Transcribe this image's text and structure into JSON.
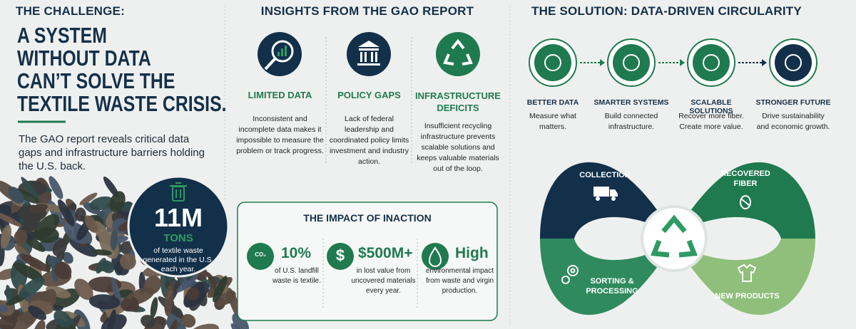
{
  "challenge": {
    "label": "THE CHALLENGE:",
    "headline": [
      "A SYSTEM",
      "WITHOUT DATA",
      "CAN’T SOLVE THE",
      "TEXTILE WASTE CRISIS."
    ],
    "body": "The GAO report reveals critical data gaps and infrastructure barriers holding the U.S. back.",
    "stat": {
      "value": "11M",
      "unit": "TONS",
      "text": "of textile waste generated in the U.S. each year."
    }
  },
  "insights": {
    "title": "INSIGHTS FROM THE GAO REPORT",
    "items": [
      {
        "title": "LIMITED DATA",
        "text": "Inconsistent and incomplete data makes it impossible to measure the problem or track progress."
      },
      {
        "title": "POLICY GAPS",
        "text": "Lack of federal leadership and coordinated policy limits investment and industry action."
      },
      {
        "title": "INFRASTRUCTURE DEFICITS",
        "text": "Insufficient recycling infrastructure prevents scalable solutions and keeps valuable materials out of the loop."
      }
    ]
  },
  "impact": {
    "title": "THE IMPACT OF INACTION",
    "items": [
      {
        "icon": "CO₂",
        "value": "10%",
        "text": "of U.S. landfill waste is textile."
      },
      {
        "icon": "$",
        "value": "$500M+",
        "text": "in lost value from uncovered materials every year."
      },
      {
        "value": "High",
        "text": "environmental impact from waste and virgin production."
      }
    ]
  },
  "solution": {
    "title": "THE SOLUTION: DATA-DRIVEN CIRCULARITY",
    "steps": [
      {
        "title": "BETTER DATA",
        "text": "Measure what matters."
      },
      {
        "title": "SMARTER SYSTEMS",
        "text": "Build connected infrastructure."
      },
      {
        "title": "SCALABLE SOLUTIONS",
        "text": "Recover more fiber. Create more value."
      },
      {
        "title": "STRONGER FUTURE",
        "text": "Drive sustainability and economic growth."
      }
    ],
    "cycle": [
      "COLLECTION",
      "RECOVERED FIBER",
      "SORTING & PROCESSING",
      "NEW PRODUCTS"
    ]
  }
}
